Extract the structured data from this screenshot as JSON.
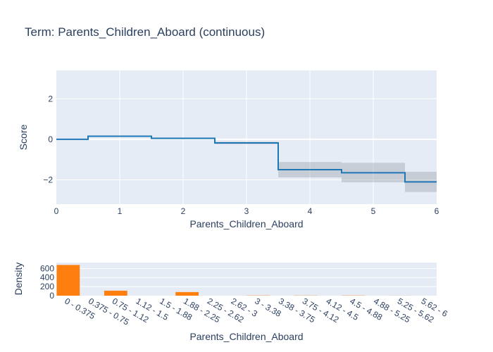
{
  "chart_data": [
    {
      "type": "line",
      "title": "Term: Parents_Children_Aboard (continuous)",
      "xlabel": "Parents_Children_Aboard",
      "ylabel": "Score",
      "xlim": [
        0,
        6
      ],
      "ylim": [
        -3.2,
        3.4
      ],
      "x_ticks": [
        "0",
        "1",
        "2",
        "3",
        "4",
        "5",
        "6"
      ],
      "y_ticks": [
        "2",
        "0",
        "−2"
      ],
      "y_tick_values": [
        2,
        0,
        -2
      ],
      "line_color": "#1f77b4",
      "band_color": "#9aa1aa",
      "steps": [
        {
          "x0": 0.0,
          "x1": 0.5,
          "y": 0.0,
          "lower": 0.0,
          "upper": 0.0
        },
        {
          "x0": 0.5,
          "x1": 1.5,
          "y": 0.15,
          "lower": 0.12,
          "upper": 0.18
        },
        {
          "x0": 1.5,
          "x1": 2.5,
          "y": 0.05,
          "lower": 0.01,
          "upper": 0.09
        },
        {
          "x0": 2.5,
          "x1": 3.5,
          "y": -0.18,
          "lower": -0.24,
          "upper": -0.12
        },
        {
          "x0": 3.5,
          "x1": 4.5,
          "y": -1.5,
          "lower": -1.88,
          "upper": -1.12
        },
        {
          "x0": 4.5,
          "x1": 5.5,
          "y": -1.65,
          "lower": -2.12,
          "upper": -1.16
        },
        {
          "x0": 5.5,
          "x1": 6.0,
          "y": -2.1,
          "lower": -2.6,
          "upper": -1.6
        }
      ]
    },
    {
      "type": "bar",
      "xlabel": "Parents_Children_Aboard",
      "ylabel": "Density",
      "ylim": [
        0,
        730
      ],
      "y_ticks": [
        "600",
        "400",
        "200",
        "0"
      ],
      "y_tick_values": [
        600,
        400,
        200,
        0
      ],
      "bar_color": "#ff7f0e",
      "categories": [
        "0 - 0.375",
        "0.375 - 0.75",
        "0.75 - 1.12",
        "1.12 - 1.5",
        "1.5 - 1.88",
        "1.88 - 2.25",
        "2.25 - 2.62",
        "2.62 - 3",
        "3 - 3.38",
        "3.38 - 3.75",
        "3.75 - 4.12",
        "4.12 - 4.5",
        "4.5 - 4.88",
        "4.88 - 5.25",
        "5.25 - 5.62",
        "5.62 - 6"
      ],
      "values": [
        678,
        0,
        110,
        0,
        0,
        80,
        0,
        0,
        5,
        0,
        4,
        0,
        5,
        0,
        1,
        0
      ]
    }
  ]
}
